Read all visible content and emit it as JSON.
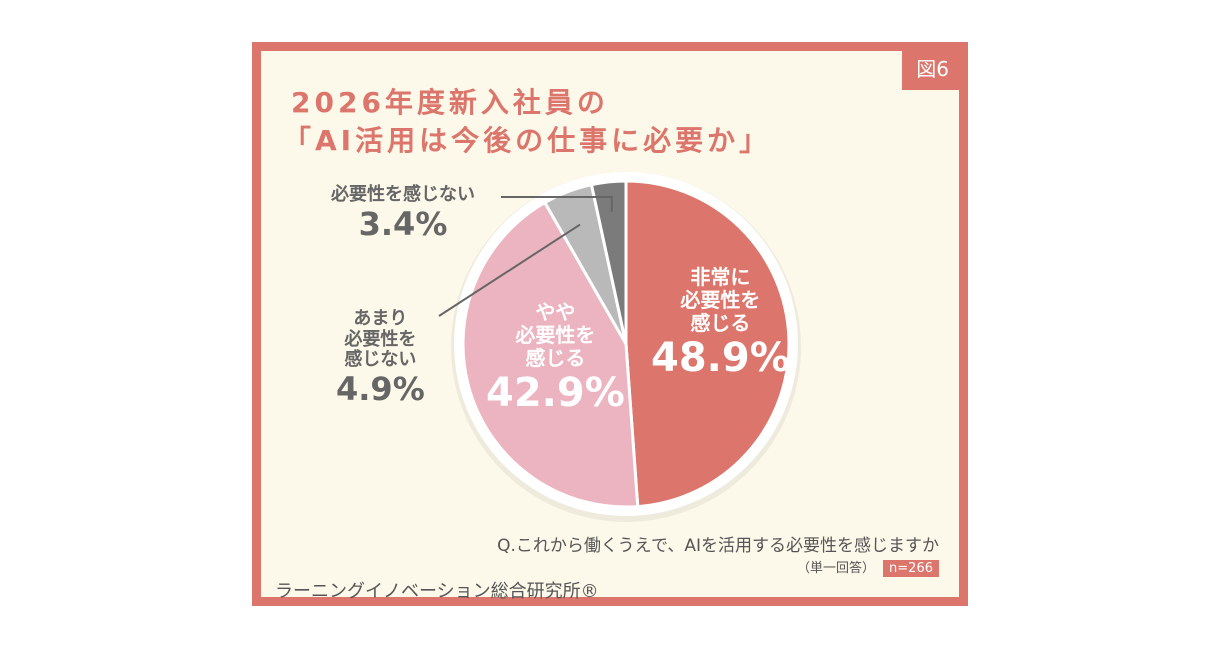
{
  "figure_label": "図6",
  "chart_data": {
    "type": "pie",
    "title": [
      "2026年度新入社員の",
      "「AI活用は今後の仕事に必要か」"
    ],
    "slices": [
      {
        "label": "非常に必要性を感じる",
        "label_lines": [
          "非常に",
          "必要性を",
          "感じる"
        ],
        "value": 48.9,
        "value_label": "48.9%",
        "color": "#dc756b"
      },
      {
        "label": "やや必要性を感じる",
        "label_lines": [
          "やや",
          "必要性を",
          "感じる"
        ],
        "value": 42.9,
        "value_label": "42.9%",
        "color": "#ecb4c0"
      },
      {
        "label": "あまり必要性を感じない",
        "label_lines": [
          "あまり",
          "必要性を",
          "感じない"
        ],
        "value": 4.9,
        "value_label": "4.9%",
        "color": "#b9b9b9"
      },
      {
        "label": "必要性を感じない",
        "label_lines": [
          "必要性を感じない"
        ],
        "value": 3.4,
        "value_label": "3.4%",
        "color": "#7b7b7b"
      }
    ],
    "start": "top",
    "direction": "clockwise"
  },
  "question": "Q.これから働くうえで、AIを活用する必要性を感じますか",
  "answer_type": "（単一回答）",
  "n": "n=266",
  "organization": "ラーニングイノベーション総合研究所®"
}
